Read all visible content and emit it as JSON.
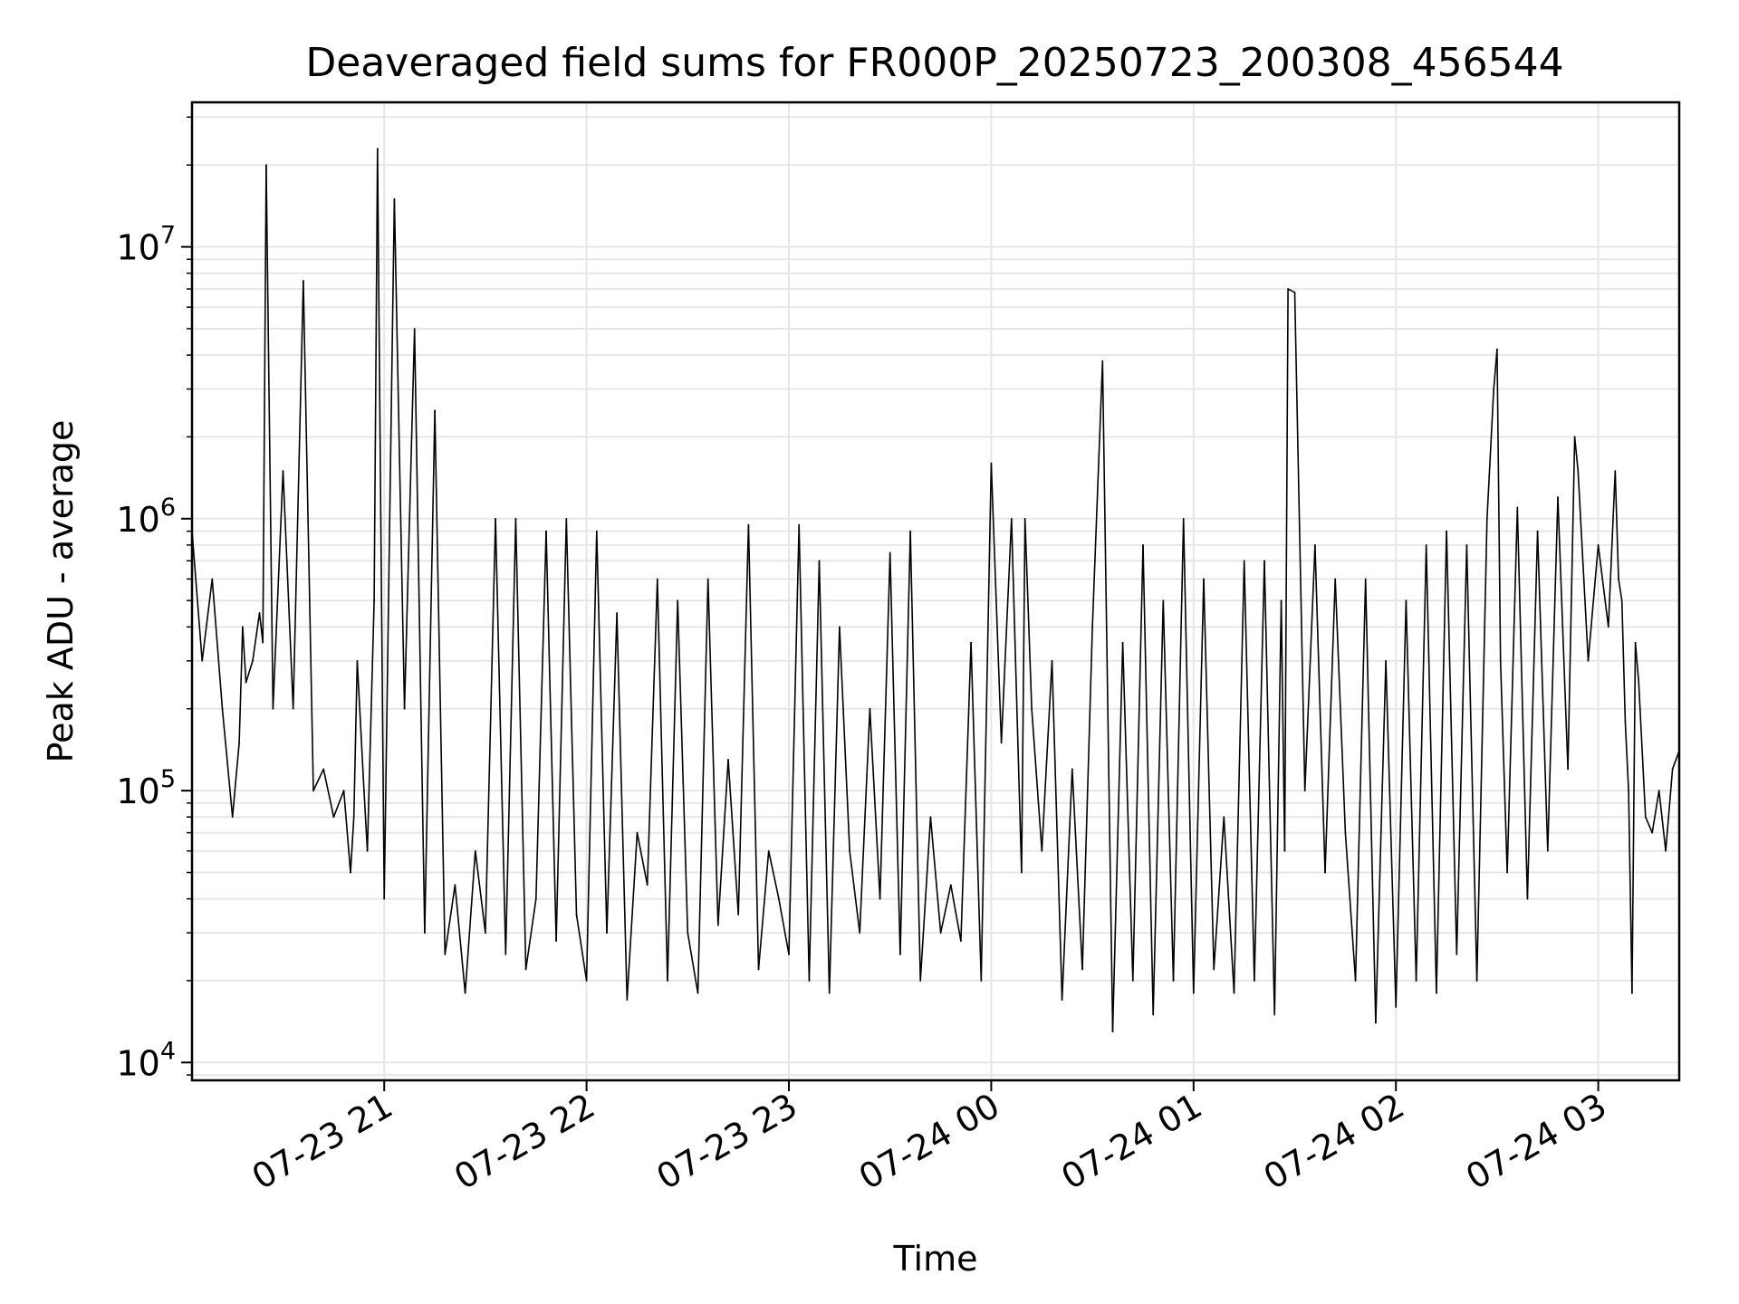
{
  "chart_data": {
    "type": "line",
    "title": "Deaveraged field sums for FR000P_20250723_200308_456544",
    "xlabel": "Time",
    "ylabel": "Peak ADU - average",
    "yscale": "log",
    "ylim": [
      8600,
      34000000
    ],
    "xlim": [
      "2025-07-23 20:03",
      "2025-07-24 03:24"
    ],
    "x_ticks": [
      "2025-07-23 21:00",
      "2025-07-23 22:00",
      "2025-07-23 23:00",
      "2025-07-24 00:00",
      "2025-07-24 01:00",
      "2025-07-24 02:00",
      "2025-07-24 03:00"
    ],
    "x_tick_labels": [
      "07-23 21",
      "07-23 22",
      "07-23 23",
      "07-24 00",
      "07-24 01",
      "07-24 02",
      "07-24 03"
    ],
    "y_ticks": [
      10000,
      100000,
      1000000,
      10000000
    ],
    "y_tick_base": "10",
    "y_tick_exponents": [
      "4",
      "5",
      "6",
      "7"
    ],
    "grid": true,
    "line_color": "#000000",
    "grid_color": "#e6e6e6",
    "series": [
      {
        "x": [
          "2025-07-23 20:03",
          "2025-07-23 20:06",
          "2025-07-23 20:09",
          "2025-07-23 20:12",
          "2025-07-23 20:15",
          "2025-07-23 20:17",
          "2025-07-23 20:18",
          "2025-07-23 20:19",
          "2025-07-23 20:21",
          "2025-07-23 20:23",
          "2025-07-23 20:24",
          "2025-07-23 20:25",
          "2025-07-23 20:27",
          "2025-07-23 20:30",
          "2025-07-23 20:33",
          "2025-07-23 20:36",
          "2025-07-23 20:39",
          "2025-07-23 20:42",
          "2025-07-23 20:45",
          "2025-07-23 20:48",
          "2025-07-23 20:50",
          "2025-07-23 20:51",
          "2025-07-23 20:52",
          "2025-07-23 20:54",
          "2025-07-23 20:55",
          "2025-07-23 20:57",
          "2025-07-23 20:58",
          "2025-07-23 21:00",
          "2025-07-23 21:03",
          "2025-07-23 21:06",
          "2025-07-23 21:09",
          "2025-07-23 21:12",
          "2025-07-23 21:15",
          "2025-07-23 21:18",
          "2025-07-23 21:21",
          "2025-07-23 21:24",
          "2025-07-23 21:27",
          "2025-07-23 21:30",
          "2025-07-23 21:33",
          "2025-07-23 21:36",
          "2025-07-23 21:39",
          "2025-07-23 21:42",
          "2025-07-23 21:45",
          "2025-07-23 21:48",
          "2025-07-23 21:51",
          "2025-07-23 21:54",
          "2025-07-23 21:57",
          "2025-07-23 22:00",
          "2025-07-23 22:03",
          "2025-07-23 22:06",
          "2025-07-23 22:09",
          "2025-07-23 22:12",
          "2025-07-23 22:15",
          "2025-07-23 22:18",
          "2025-07-23 22:21",
          "2025-07-23 22:24",
          "2025-07-23 22:27",
          "2025-07-23 22:30",
          "2025-07-23 22:33",
          "2025-07-23 22:36",
          "2025-07-23 22:39",
          "2025-07-23 22:42",
          "2025-07-23 22:45",
          "2025-07-23 22:48",
          "2025-07-23 22:51",
          "2025-07-23 22:54",
          "2025-07-23 22:57",
          "2025-07-23 23:00",
          "2025-07-23 23:03",
          "2025-07-23 23:06",
          "2025-07-23 23:09",
          "2025-07-23 23:12",
          "2025-07-23 23:15",
          "2025-07-23 23:18",
          "2025-07-23 23:21",
          "2025-07-23 23:24",
          "2025-07-23 23:27",
          "2025-07-23 23:30",
          "2025-07-23 23:33",
          "2025-07-23 23:36",
          "2025-07-23 23:39",
          "2025-07-23 23:42",
          "2025-07-23 23:45",
          "2025-07-23 23:48",
          "2025-07-23 23:51",
          "2025-07-23 23:54",
          "2025-07-23 23:57",
          "2025-07-24 00:00",
          "2025-07-24 00:03",
          "2025-07-24 00:06",
          "2025-07-24 00:09",
          "2025-07-24 00:10",
          "2025-07-24 00:12",
          "2025-07-24 00:15",
          "2025-07-24 00:18",
          "2025-07-24 00:21",
          "2025-07-24 00:24",
          "2025-07-24 00:27",
          "2025-07-24 00:30",
          "2025-07-24 00:33",
          "2025-07-24 00:36",
          "2025-07-24 00:39",
          "2025-07-24 00:42",
          "2025-07-24 00:45",
          "2025-07-24 00:48",
          "2025-07-24 00:51",
          "2025-07-24 00:54",
          "2025-07-24 00:57",
          "2025-07-24 01:00",
          "2025-07-24 01:03",
          "2025-07-24 01:06",
          "2025-07-24 01:09",
          "2025-07-24 01:12",
          "2025-07-24 01:15",
          "2025-07-24 01:18",
          "2025-07-24 01:21",
          "2025-07-24 01:24",
          "2025-07-24 01:26",
          "2025-07-24 01:27",
          "2025-07-24 01:28",
          "2025-07-24 01:30",
          "2025-07-24 01:33",
          "2025-07-24 01:36",
          "2025-07-24 01:39",
          "2025-07-24 01:42",
          "2025-07-24 01:45",
          "2025-07-24 01:48",
          "2025-07-24 01:51",
          "2025-07-24 01:54",
          "2025-07-24 01:57",
          "2025-07-24 02:00",
          "2025-07-24 02:03",
          "2025-07-24 02:06",
          "2025-07-24 02:09",
          "2025-07-24 02:12",
          "2025-07-24 02:15",
          "2025-07-24 02:18",
          "2025-07-24 02:21",
          "2025-07-24 02:24",
          "2025-07-24 02:27",
          "2025-07-24 02:29",
          "2025-07-24 02:30",
          "2025-07-24 02:31",
          "2025-07-24 02:33",
          "2025-07-24 02:36",
          "2025-07-24 02:39",
          "2025-07-24 02:42",
          "2025-07-24 02:45",
          "2025-07-24 02:48",
          "2025-07-24 02:51",
          "2025-07-24 02:53",
          "2025-07-24 02:54",
          "2025-07-24 02:57",
          "2025-07-24 03:00",
          "2025-07-24 03:03",
          "2025-07-24 03:05",
          "2025-07-24 03:06",
          "2025-07-24 03:07",
          "2025-07-24 03:08",
          "2025-07-24 03:09",
          "2025-07-24 03:10",
          "2025-07-24 03:11",
          "2025-07-24 03:12",
          "2025-07-24 03:14",
          "2025-07-24 03:16",
          "2025-07-24 03:18",
          "2025-07-24 03:20",
          "2025-07-24 03:22",
          "2025-07-24 03:24"
        ],
        "y": [
          900000,
          300000,
          600000,
          200000,
          80000,
          150000,
          400000,
          250000,
          300000,
          450000,
          350000,
          20000000,
          200000,
          1500000,
          200000,
          7500000,
          100000,
          120000,
          80000,
          100000,
          50000,
          80000,
          300000,
          100000,
          60000,
          500000,
          23000000,
          40000,
          15000000,
          200000,
          5000000,
          30000,
          2500000,
          25000,
          45000,
          18000,
          60000,
          30000,
          1000000,
          25000,
          1000000,
          22000,
          40000,
          900000,
          28000,
          1000000,
          35000,
          20000,
          900000,
          30000,
          450000,
          17000,
          70000,
          45000,
          600000,
          20000,
          500000,
          30000,
          18000,
          600000,
          32000,
          130000,
          35000,
          950000,
          22000,
          60000,
          40000,
          25000,
          950000,
          20000,
          700000,
          18000,
          400000,
          60000,
          30000,
          200000,
          40000,
          750000,
          25000,
          900000,
          20000,
          80000,
          30000,
          45000,
          28000,
          350000,
          20000,
          1600000,
          150000,
          1000000,
          50000,
          1000000,
          200000,
          60000,
          300000,
          17000,
          120000,
          22000,
          400000,
          3800000,
          13000,
          350000,
          20000,
          800000,
          15000,
          500000,
          20000,
          1000000,
          18000,
          600000,
          22000,
          80000,
          18000,
          700000,
          20000,
          700000,
          15000,
          500000,
          60000,
          7000000,
          6800000,
          100000,
          800000,
          50000,
          600000,
          70000,
          20000,
          600000,
          14000,
          300000,
          16000,
          500000,
          20000,
          800000,
          18000,
          900000,
          25000,
          800000,
          20000,
          1000000,
          3000000,
          4200000,
          300000,
          50000,
          1100000,
          40000,
          900000,
          60000,
          1200000,
          120000,
          2000000,
          1500000,
          300000,
          800000,
          400000,
          1500000,
          600000,
          500000,
          180000,
          100000,
          18000,
          350000,
          250000,
          80000,
          70000,
          100000,
          60000,
          120000,
          140000
        ]
      }
    ]
  }
}
